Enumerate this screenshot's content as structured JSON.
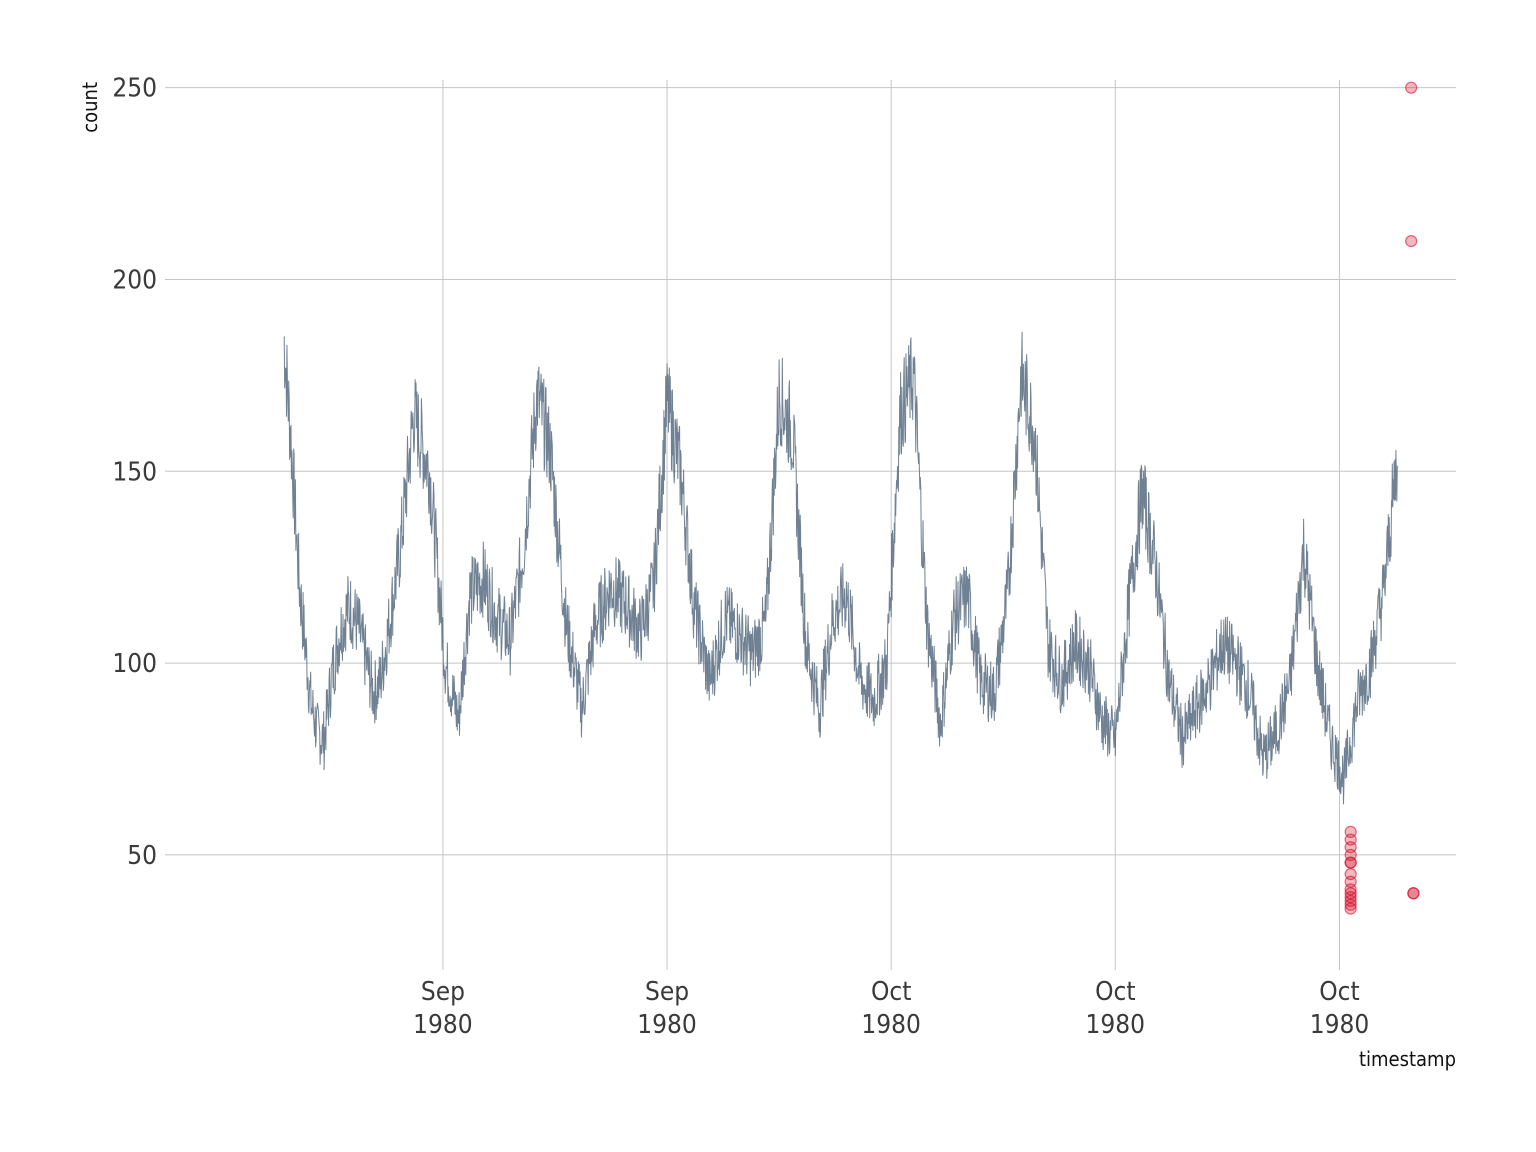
{
  "chart_data": {
    "type": "line",
    "xlabel": "timestamp",
    "ylabel": "count",
    "ylim": [
      20,
      252
    ],
    "yticks": [
      50,
      100,
      150,
      200,
      250
    ],
    "xticks": [
      {
        "x": 9.8,
        "line1": "Sep",
        "line2": "1980"
      },
      {
        "x": 19.8,
        "line1": "Sep",
        "line2": "1980"
      },
      {
        "x": 29.8,
        "line1": "Oct",
        "line2": "1980"
      },
      {
        "x": 39.8,
        "line1": "Oct",
        "line2": "1980"
      },
      {
        "x": 49.8,
        "line1": "Oct",
        "line2": "1980"
      }
    ],
    "xlim": [
      -2.6,
      55.0
    ],
    "grid": true,
    "legend": "none",
    "colors": {
      "line": "#5f7387",
      "anomaly": "#d4112b",
      "grid": "#c3c5c9"
    },
    "series": [
      {
        "values_x": [
          2.7,
          3.0,
          3.4,
          3.9,
          4.2,
          4.5,
          4.8,
          5.2,
          5.6,
          6.0,
          6.4,
          6.7,
          7.0,
          7.4,
          7.9,
          8.5,
          9.2,
          9.9,
          10.5,
          11.0,
          11.6,
          12.2,
          12.8,
          13.4,
          14.0,
          14.6,
          15.3,
          16.0,
          16.6,
          17.3,
          18.0,
          18.6,
          19.2,
          19.8,
          20.4,
          21.0,
          21.7,
          22.4,
          23.0,
          23.6,
          24.2,
          24.8,
          25.4,
          26.0,
          26.6,
          27.2,
          27.8,
          28.4,
          29.0,
          29.6,
          30.2,
          30.8,
          31.4,
          32.0,
          32.6,
          33.2,
          33.8,
          34.4,
          35.0,
          35.6,
          36.2,
          36.8,
          37.4,
          38.0,
          38.6,
          39.2,
          39.8,
          40.4,
          41.0,
          41.6,
          42.2,
          42.8,
          43.4,
          44.0,
          44.6,
          45.2,
          45.8,
          46.4,
          47.0,
          47.6,
          48.2,
          48.8,
          49.4,
          50.0,
          50.6,
          51.2,
          51.8,
          52.4
        ],
        "values_y": [
          185,
          160,
          120,
          90,
          82,
          80,
          95,
          108,
          115,
          110,
          100,
          92,
          95,
          110,
          130,
          165,
          150,
          100,
          85,
          118,
          122,
          112,
          106,
          130,
          170,
          155,
          110,
          88,
          110,
          120,
          115,
          108,
          120,
          168,
          150,
          115,
          95,
          112,
          108,
          102,
          110,
          170,
          160,
          105,
          88,
          112,
          118,
          96,
          90,
          100,
          165,
          175,
          110,
          84,
          112,
          118,
          95,
          92,
          118,
          175,
          160,
          105,
          95,
          105,
          100,
          85,
          80,
          115,
          145,
          125,
          95,
          80,
          88,
          95,
          105,
          100,
          92,
          75,
          82,
          95,
          130,
          100,
          80,
          70,
          90,
          100,
          120,
          155
        ]
      }
    ],
    "anomalies": {
      "x": [
        50.3,
        50.3,
        50.3,
        50.3,
        50.3,
        50.3,
        50.3,
        50.3,
        50.3,
        50.3,
        50.3,
        50.3,
        50.3,
        50.3,
        53.0,
        53.0,
        53.1,
        53.1
      ],
      "y": [
        56,
        54,
        52,
        50,
        48,
        48,
        45,
        43,
        41,
        40,
        39,
        38,
        37,
        36,
        250,
        210,
        40,
        40
      ]
    }
  }
}
